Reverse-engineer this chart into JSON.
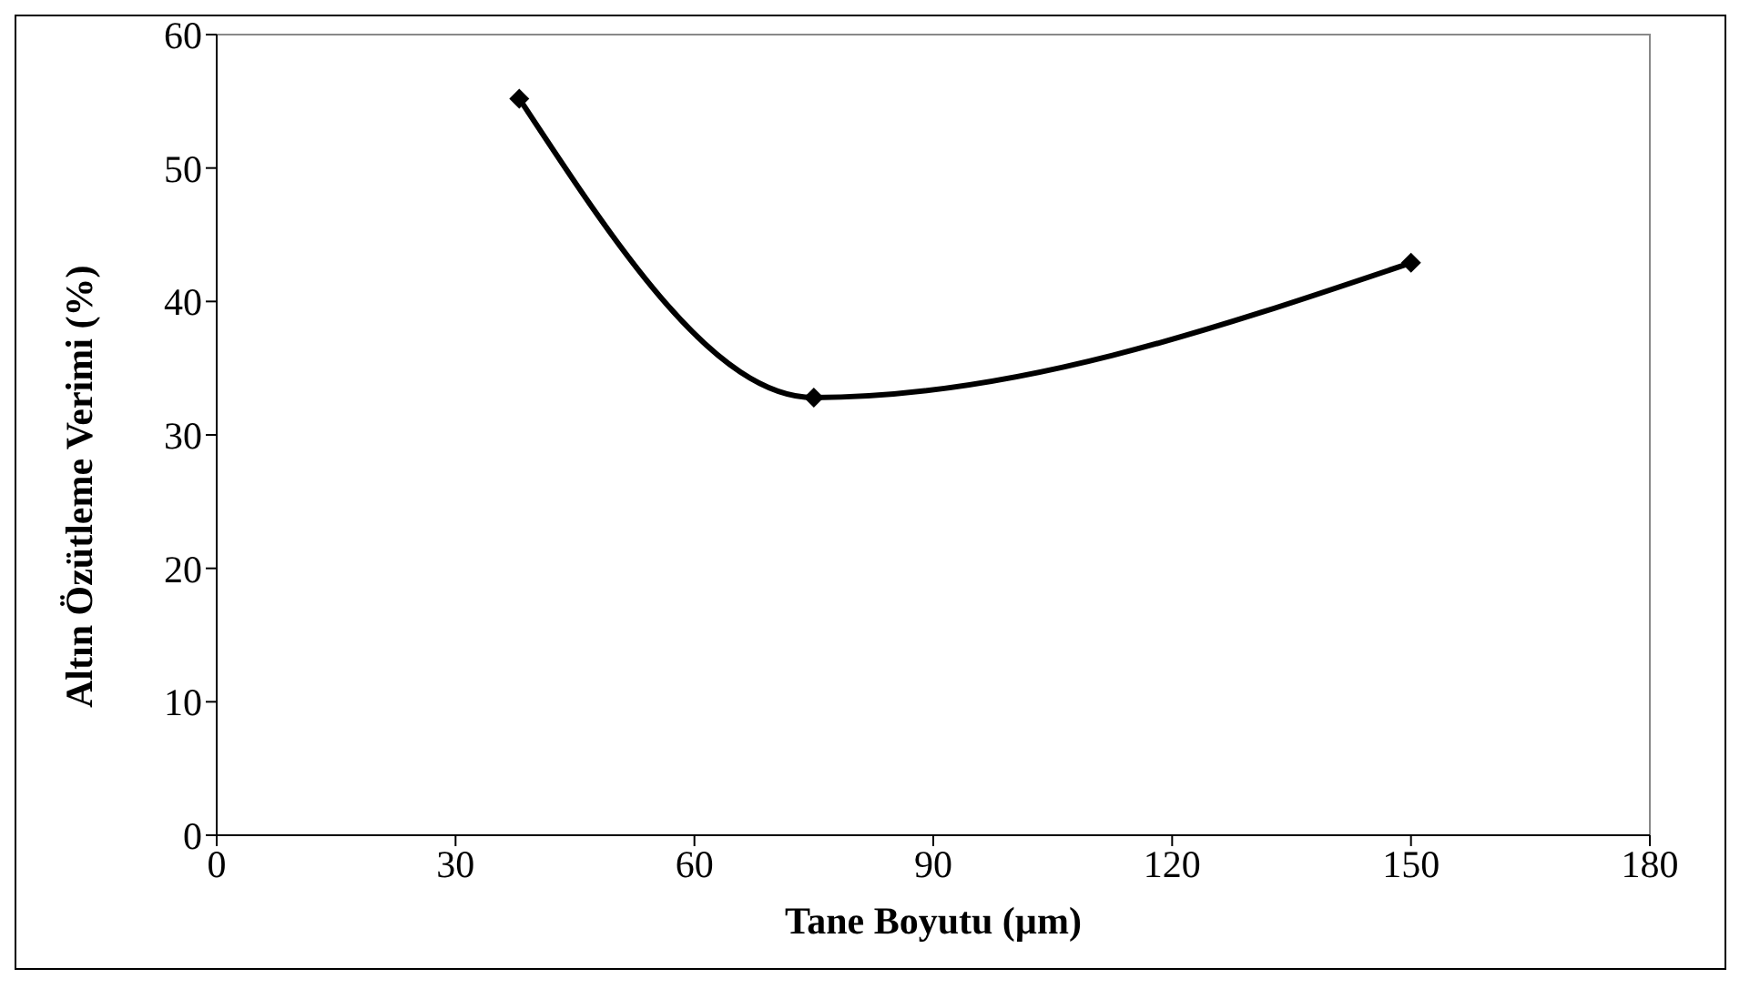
{
  "chart_data": {
    "type": "line",
    "xlabel": "Tane Boyutu (µm)",
    "ylabel": "Altın Özütleme  Verimi (%)",
    "x": [
      38,
      75,
      150
    ],
    "series": [
      {
        "color": "#000000",
        "values": [
          55.2,
          32.8,
          42.9
        ]
      }
    ],
    "xlim": [
      0,
      180
    ],
    "xticks": [
      0,
      30,
      60,
      90,
      120,
      150,
      180
    ],
    "ylim": [
      0,
      60
    ],
    "yticks": [
      0,
      10,
      20,
      30,
      40,
      50,
      60
    ],
    "grid": false,
    "marker": "diamond",
    "line_style": "solid"
  }
}
